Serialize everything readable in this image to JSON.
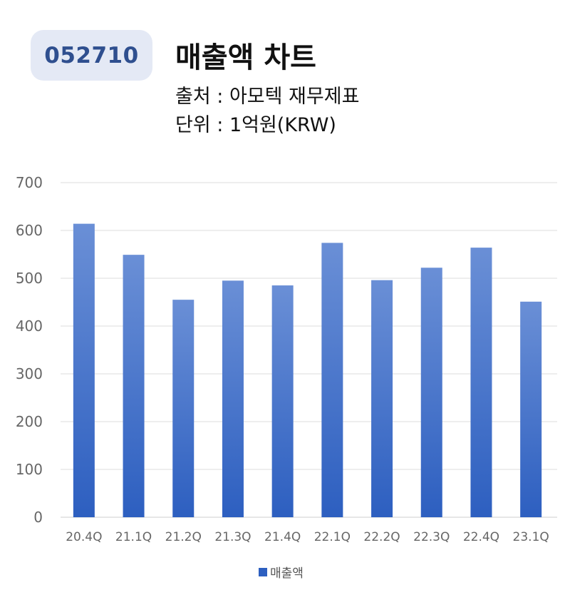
{
  "header": {
    "ticker": "052710",
    "title": "매출액 차트",
    "source": "출처 : 아모텍 재무제표",
    "unit": "단위 : 1억원(KRW)"
  },
  "colors": {
    "bar_top": "#6a8fd6",
    "bar_bottom": "#2d5fc0",
    "badge_bg": "#e4e9f5",
    "badge_text": "#2f4f8f",
    "grid": "#dddddd",
    "axis_text": "#666666"
  },
  "chart_data": {
    "type": "bar",
    "categories": [
      "20.4Q",
      "21.1Q",
      "21.2Q",
      "21.3Q",
      "21.4Q",
      "22.1Q",
      "22.2Q",
      "22.3Q",
      "22.4Q",
      "23.1Q"
    ],
    "series": [
      {
        "name": "매출액",
        "values": [
          614,
          549,
          455,
          495,
          485,
          574,
          496,
          522,
          564,
          451
        ]
      }
    ],
    "yticks": [
      0,
      100,
      200,
      300,
      400,
      500,
      600,
      700
    ],
    "ylim": [
      0,
      700
    ],
    "grid": true,
    "legend_position": "bottom-center"
  }
}
